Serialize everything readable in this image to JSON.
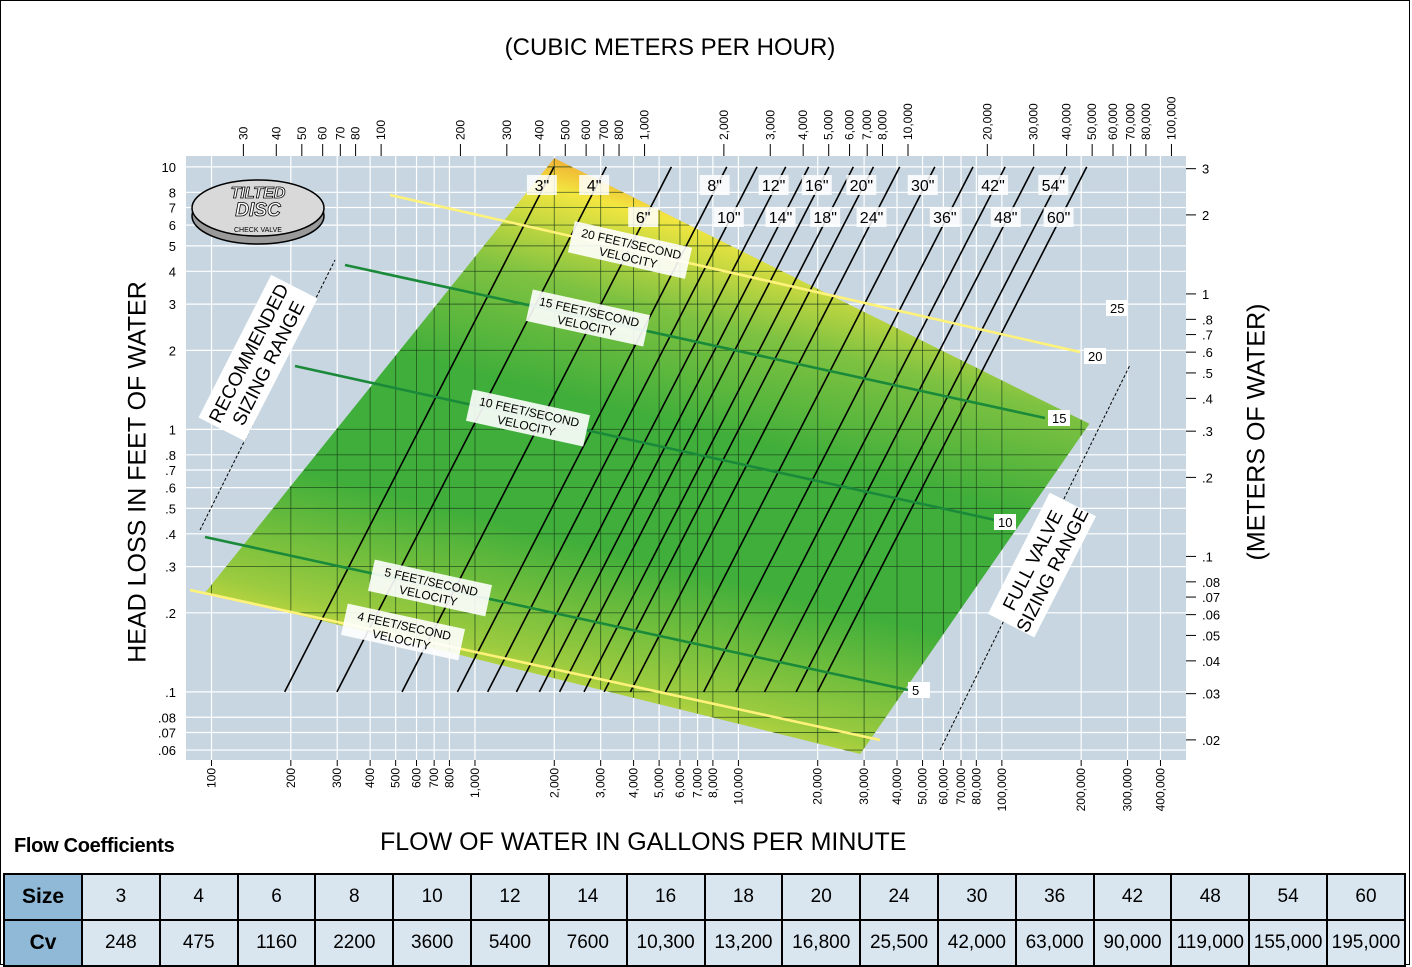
{
  "chart_data": {
    "type": "nomogram",
    "top_axis_title": "(CUBIC METERS PER HOUR)",
    "bottom_axis_title": "FLOW OF WATER IN GALLONS PER MINUTE",
    "left_axis_title": "HEAD LOSS IN FEET OF WATER",
    "right_axis_title": "(METERS OF WATER)",
    "x_scale": "log",
    "y_scale": "log",
    "x_range_gpm": [
      80,
      500000
    ],
    "y_range_ft": [
      0.055,
      11
    ],
    "bottom_ticks": [
      "100",
      "200",
      "300",
      "400",
      "500",
      "600",
      "700",
      "800",
      "1,000",
      "2,000",
      "3,000",
      "4,000",
      "5,000",
      "6,000",
      "7,000",
      "8,000",
      "10,000",
      "20,000",
      "30,000",
      "40,000",
      "50,000",
      "60,000",
      "70,000",
      "80,000",
      "100,000",
      "200,000",
      "300,000",
      "400,000"
    ],
    "top_ticks": [
      "30",
      "40",
      "50",
      "60",
      "70",
      "80",
      "100",
      "200",
      "300",
      "400",
      "500",
      "600",
      "700",
      "800",
      "1,000",
      "2,000",
      "3,000",
      "4,000",
      "5,000",
      "6,000",
      "7,000",
      "8,000",
      "10,000",
      "20,000",
      "30,000",
      "40,000",
      "50,000",
      "60,000",
      "70,000",
      "80,000",
      "100,000"
    ],
    "left_ticks": [
      "10",
      "8",
      "7",
      "6",
      "5",
      "4",
      "3",
      "2",
      "1",
      ".8",
      ".7",
      ".6",
      ".5",
      ".4",
      ".3",
      ".2",
      ".1",
      ".08",
      ".07",
      ".06"
    ],
    "right_ticks": [
      "3",
      "2",
      "1",
      ".8",
      ".7",
      ".6",
      ".5",
      ".4",
      ".3",
      ".2",
      ".1",
      ".08",
      ".07",
      ".06",
      ".05",
      ".04",
      ".03",
      ".02"
    ],
    "valve_sizes": [
      "3\"",
      "4\"",
      "6\"",
      "8\"",
      "10\"",
      "12\"",
      "14\"",
      "16\"",
      "18\"",
      "20\"",
      "24\"",
      "30\"",
      "36\"",
      "42\"",
      "48\"",
      "54\"",
      "60\""
    ],
    "velocity_lines": [
      {
        "label_line1": "20 FEET/SECOND",
        "label_line2": "VELOCITY",
        "value": 20
      },
      {
        "label_line1": "15 FEET/SECOND",
        "label_line2": "VELOCITY",
        "value": 15
      },
      {
        "label_line1": "10 FEET/SECOND",
        "label_line2": "VELOCITY",
        "value": 10
      },
      {
        "label_line1": "5 FEET/SECOND",
        "label_line2": "VELOCITY",
        "value": 5
      },
      {
        "label_line1": "4 FEET/SECOND",
        "label_line2": "VELOCITY",
        "value": 4
      }
    ],
    "edge_labels": [
      "25",
      "20",
      "15",
      "10",
      "5"
    ],
    "recommended_range": {
      "line1": "RECOMMENDED",
      "line2": "SIZING RANGE"
    },
    "full_range": {
      "line1": "FULL VALVE",
      "line2": "SIZING RANGE"
    },
    "colors": {
      "band_green": "#3fae3a",
      "band_yellow": "#f2e640",
      "band_red": "#d8262b",
      "grid_bg": "#c7d6e0",
      "line_black": "#000000",
      "velocity_green": "#1a8a3a",
      "velocity_yellow": "#fff27a"
    }
  },
  "logo": {
    "line1": "TILTED",
    "line2": "DISC",
    "line3": "CHECK VALVE"
  },
  "flow_coefficients": {
    "title": "Flow Coefficients",
    "size_header": "Size",
    "cv_header": "Cv",
    "sizes": [
      "3",
      "4",
      "6",
      "8",
      "10",
      "12",
      "14",
      "16",
      "18",
      "20",
      "24",
      "30",
      "36",
      "42",
      "48",
      "54",
      "60"
    ],
    "cv": [
      "248",
      "475",
      "1160",
      "2200",
      "3600",
      "5400",
      "7600",
      "10,300",
      "13,200",
      "16,800",
      "25,500",
      "42,000",
      "63,000",
      "90,000",
      "119,000",
      "155,000",
      "195,000"
    ]
  }
}
